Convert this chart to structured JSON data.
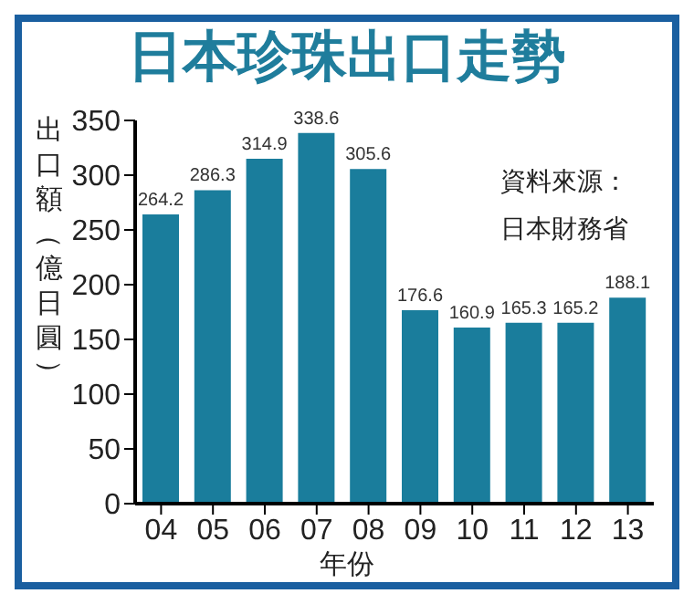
{
  "chart_data": {
    "type": "bar",
    "title": "日本珍珠出口走勢",
    "ylabel": "出口額（億日圓）",
    "xlabel": "年份",
    "annotations": [
      "資料來源：",
      "日本財務省"
    ],
    "categories": [
      "04",
      "05",
      "06",
      "07",
      "08",
      "09",
      "10",
      "11",
      "12",
      "13"
    ],
    "values": [
      264.2,
      286.3,
      314.9,
      338.6,
      305.6,
      176.6,
      160.9,
      165.3,
      165.2,
      188.1
    ],
    "color": "#1a7d9c",
    "ylim": [
      0,
      350
    ],
    "yticks": [
      0,
      50,
      100,
      150,
      200,
      250,
      300,
      350
    ],
    "grid": false,
    "data_labels": true
  }
}
